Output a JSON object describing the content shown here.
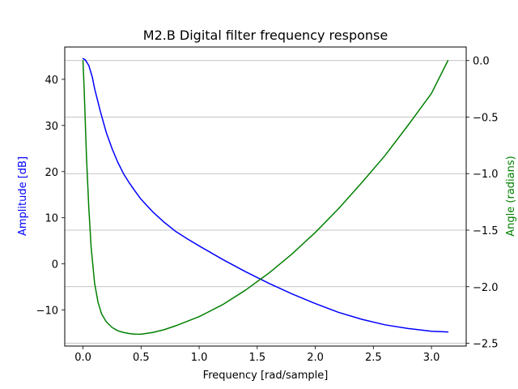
{
  "chart_data": {
    "type": "line",
    "title": "M2.B Digital filter frequency response",
    "xlabel": "Frequency [rad/sample]",
    "ylabel_left": "Amplitude [dB]",
    "ylabel_right": "Angle (radians)",
    "xlim": [
      -0.157,
      3.299
    ],
    "ylim_left": [
      -17.8,
      47.0
    ],
    "ylim_right": [
      -2.525,
      0.12
    ],
    "x_ticks": [
      "0.0",
      "0.5",
      "1.0",
      "1.5",
      "2.0",
      "2.5",
      "3.0"
    ],
    "y_left_ticks": [
      "−10",
      "0",
      "10",
      "20",
      "30",
      "40"
    ],
    "y_right_ticks": [
      "−2.5",
      "−2.0",
      "−1.5",
      "−1.0",
      "−0.5",
      "0.0"
    ],
    "grid": "horizontal, at right-axis ticks",
    "left_axis_color": "#0000ff",
    "right_axis_color": "#008000",
    "series": [
      {
        "axis": "left",
        "color": "#0000ff",
        "x": [
          0.0,
          0.02,
          0.05,
          0.08,
          0.1,
          0.15,
          0.2,
          0.25,
          0.3,
          0.35,
          0.4,
          0.45,
          0.5,
          0.6,
          0.7,
          0.8,
          0.9,
          1.0,
          1.2,
          1.4,
          1.6,
          1.8,
          2.0,
          2.2,
          2.4,
          2.6,
          2.8,
          3.0,
          3.1416
        ],
        "values": [
          44.5,
          44.2,
          43.0,
          40.5,
          38.0,
          33.0,
          28.5,
          25.0,
          22.0,
          19.5,
          17.5,
          15.7,
          14.0,
          11.3,
          9.0,
          7.0,
          5.4,
          3.9,
          1.0,
          -1.7,
          -4.2,
          -6.5,
          -8.6,
          -10.5,
          -12.0,
          -13.2,
          -14.0,
          -14.6,
          -14.75
        ]
      },
      {
        "axis": "right",
        "color": "#008000",
        "x": [
          0.0,
          0.01,
          0.02,
          0.03,
          0.05,
          0.07,
          0.1,
          0.13,
          0.16,
          0.2,
          0.25,
          0.3,
          0.35,
          0.4,
          0.45,
          0.5,
          0.6,
          0.7,
          0.8,
          1.0,
          1.2,
          1.4,
          1.6,
          1.8,
          2.0,
          2.2,
          2.4,
          2.6,
          2.8,
          3.0,
          3.1416
        ],
        "values": [
          0.0,
          -0.25,
          -0.55,
          -0.85,
          -1.3,
          -1.65,
          -1.97,
          -2.14,
          -2.24,
          -2.31,
          -2.36,
          -2.39,
          -2.405,
          -2.415,
          -2.42,
          -2.42,
          -2.405,
          -2.38,
          -2.345,
          -2.265,
          -2.16,
          -2.03,
          -1.88,
          -1.71,
          -1.52,
          -1.31,
          -1.08,
          -0.84,
          -0.57,
          -0.29,
          0.0
        ]
      }
    ]
  }
}
